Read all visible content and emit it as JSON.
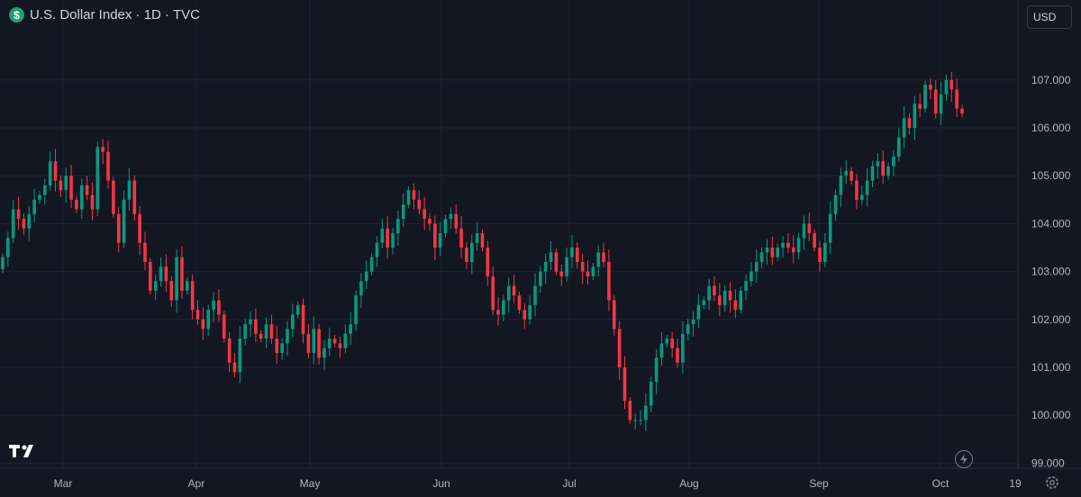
{
  "header": {
    "badge_symbol": "$",
    "title": "U.S. Dollar Index · 1D · TVC"
  },
  "toolbar": {
    "currency_label": "USD"
  },
  "icons": {
    "logo": "tradingview-logo-icon",
    "bolt": "lightning-icon",
    "settings": "gear-icon"
  },
  "colors": {
    "background": "#131722",
    "up": "#089981",
    "down": "#f23645",
    "grid": "#1f2330",
    "axis_text": "#b2b5be"
  },
  "chart_data": {
    "type": "candlestick",
    "title": "U.S. Dollar Index · 1D · TVC",
    "y_ticks": [
      "107.000",
      "106.000",
      "105.000",
      "104.000",
      "103.000",
      "102.000",
      "101.000",
      "100.000",
      "99.000"
    ],
    "y_tick_values": [
      107,
      106,
      105,
      104,
      103,
      102,
      101,
      100,
      99
    ],
    "x_tick_labels": [
      "Mar",
      "Apr",
      "May",
      "Jun",
      "Jul",
      "Aug",
      "Sep",
      "Oct",
      "19"
    ],
    "ylim": [
      98.8,
      108.2
    ],
    "grid": true,
    "closes": [
      103.3,
      103.7,
      104.3,
      104.1,
      103.9,
      104.2,
      104.5,
      104.6,
      104.8,
      105.3,
      104.9,
      104.7,
      105.0,
      104.5,
      104.3,
      104.8,
      104.6,
      104.3,
      105.6,
      105.5,
      104.9,
      104.2,
      103.6,
      104.5,
      104.9,
      104.2,
      103.6,
      103.2,
      102.6,
      102.8,
      103.1,
      102.8,
      102.4,
      103.3,
      102.6,
      102.8,
      102.2,
      102.0,
      101.8,
      102.2,
      102.4,
      102.1,
      101.6,
      101.1,
      100.9,
      101.6,
      101.9,
      102.0,
      101.7,
      101.6,
      101.9,
      101.6,
      101.3,
      101.5,
      101.8,
      102.1,
      102.3,
      101.7,
      101.3,
      101.8,
      101.2,
      101.4,
      101.6,
      101.5,
      101.4,
      101.7,
      101.9,
      102.5,
      102.8,
      103.0,
      103.3,
      103.6,
      103.9,
      103.5,
      103.8,
      104.1,
      104.4,
      104.7,
      104.5,
      104.3,
      104.1,
      104.0,
      103.5,
      103.8,
      104.1,
      104.2,
      103.9,
      103.5,
      103.2,
      103.6,
      103.8,
      103.5,
      102.9,
      102.2,
      102.1,
      102.4,
      102.7,
      102.5,
      102.2,
      102.0,
      102.3,
      102.7,
      103.0,
      103.2,
      103.4,
      103.0,
      102.9,
      103.3,
      103.5,
      103.2,
      103.0,
      102.9,
      103.1,
      103.4,
      103.2,
      102.4,
      101.8,
      101.0,
      100.3,
      99.9,
      99.9,
      99.9,
      100.2,
      100.7,
      101.2,
      101.5,
      101.6,
      101.4,
      101.1,
      101.7,
      101.9,
      102.0,
      102.3,
      102.4,
      102.7,
      102.5,
      102.3,
      102.6,
      102.4,
      102.2,
      102.6,
      102.8,
      103.0,
      103.2,
      103.4,
      103.5,
      103.3,
      103.5,
      103.6,
      103.5,
      103.4,
      103.7,
      104.0,
      103.8,
      103.5,
      103.2,
      103.6,
      104.2,
      104.6,
      105.0,
      105.1,
      104.9,
      104.5,
      104.6,
      104.9,
      105.2,
      105.3,
      105.0,
      105.2,
      105.4,
      105.8,
      106.2,
      106.0,
      106.5,
      106.4,
      106.9,
      106.8,
      106.3,
      106.7,
      107.0,
      106.8,
      106.4,
      106.3
    ]
  }
}
